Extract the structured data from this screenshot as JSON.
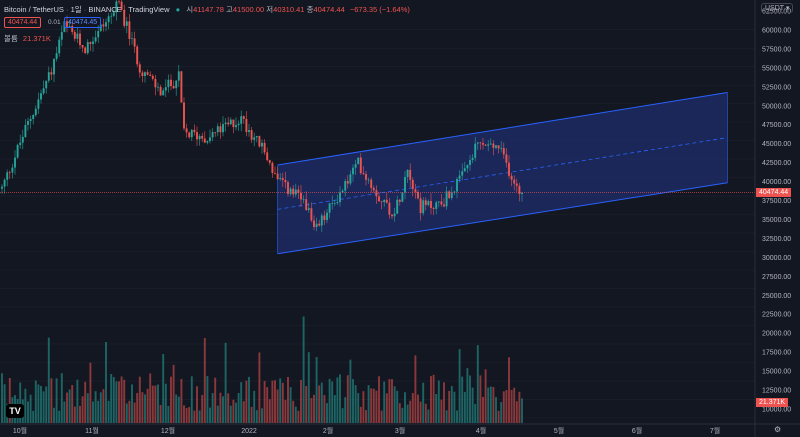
{
  "header": {
    "symbol": "Bitcoin / TetherUS",
    "interval": "1일",
    "exchange": "BINANCE",
    "publisher": "TradingView",
    "open_label": "시",
    "open_value": "41147.78",
    "high_label": "고",
    "high_value": "41500.00",
    "low_label": "저",
    "low_value": "40310.41",
    "close_label": "종",
    "close_value": "40474.44",
    "change": "−673.35 (−1.64%)",
    "sell_price": "40474.44",
    "spread": "0.01",
    "buy_price": "40474.45",
    "volume_label": "볼륨",
    "volume_value": "21.371K",
    "currency_button": "USDT"
  },
  "colors": {
    "up": "#26a69a",
    "down": "#ef5350",
    "channel_fill": "#1e2d6b",
    "channel_line": "#2962ff",
    "background": "#131722",
    "grid": "#1e222d"
  },
  "price_axis": {
    "ticks": [
      "62500.00",
      "60000.00",
      "57500.00",
      "55000.00",
      "52500.00",
      "50000.00",
      "47500.00",
      "45000.00",
      "42500.00",
      "40000.00",
      "37500.00",
      "35000.00",
      "32500.00",
      "30000.00",
      "27500.00",
      "25000.00",
      "22500.00",
      "20000.00",
      "17500.00",
      "15000.00",
      "12500.00",
      "10000.00"
    ],
    "current_price_label": "40474.44",
    "current_volume_label": "21.371K"
  },
  "time_axis": {
    "labels": [
      "10월",
      "11월",
      "12월",
      "2022",
      "2월",
      "3월",
      "4월",
      "5월",
      "6월",
      "7월"
    ]
  },
  "chart_data": {
    "type": "candlestick",
    "price_range": [
      30000,
      64000
    ],
    "volume_range": [
      10000,
      24000
    ],
    "last_close": 40474.44,
    "channel": {
      "upper": [
        {
          "date": "2022-01-10",
          "price": 44200
        },
        {
          "date": "2022-07-02",
          "price": 54000
        }
      ],
      "middle": [
        {
          "date": "2022-01-10",
          "price": 38200
        },
        {
          "date": "2022-07-02",
          "price": 47900
        }
      ],
      "lower": [
        {
          "date": "2022-01-10",
          "price": 32200
        },
        {
          "date": "2022-07-02",
          "price": 41800
        }
      ]
    },
    "anchors": [
      {
        "date": "2021-09-26",
        "price": 41000
      },
      {
        "date": "2021-10-05",
        "price": 49000
      },
      {
        "date": "2021-10-15",
        "price": 57000
      },
      {
        "date": "2021-10-20",
        "price": 63000
      },
      {
        "date": "2021-10-28",
        "price": 60000
      },
      {
        "date": "2021-11-08",
        "price": 65000
      },
      {
        "date": "2021-11-10",
        "price": 66000
      },
      {
        "date": "2021-11-18",
        "price": 57500
      },
      {
        "date": "2021-11-26",
        "price": 54000
      },
      {
        "date": "2021-12-03",
        "price": 56000
      },
      {
        "date": "2021-12-05",
        "price": 48500
      },
      {
        "date": "2021-12-14",
        "price": 48000
      },
      {
        "date": "2021-12-27",
        "price": 50500
      },
      {
        "date": "2022-01-05",
        "price": 46000
      },
      {
        "date": "2022-01-10",
        "price": 42000
      },
      {
        "date": "2022-01-21",
        "price": 39000
      },
      {
        "date": "2022-01-24",
        "price": 35000
      },
      {
        "date": "2022-02-05",
        "price": 41500
      },
      {
        "date": "2022-02-10",
        "price": 44500
      },
      {
        "date": "2022-02-18",
        "price": 40000
      },
      {
        "date": "2022-02-24",
        "price": 37500
      },
      {
        "date": "2022-03-01",
        "price": 44000
      },
      {
        "date": "2022-03-06",
        "price": 38500
      },
      {
        "date": "2022-03-14",
        "price": 39000
      },
      {
        "date": "2022-03-22",
        "price": 42500
      },
      {
        "date": "2022-03-28",
        "price": 47000
      },
      {
        "date": "2022-04-05",
        "price": 46500
      },
      {
        "date": "2022-04-11",
        "price": 42000
      },
      {
        "date": "2022-04-14",
        "price": 40474
      }
    ]
  }
}
